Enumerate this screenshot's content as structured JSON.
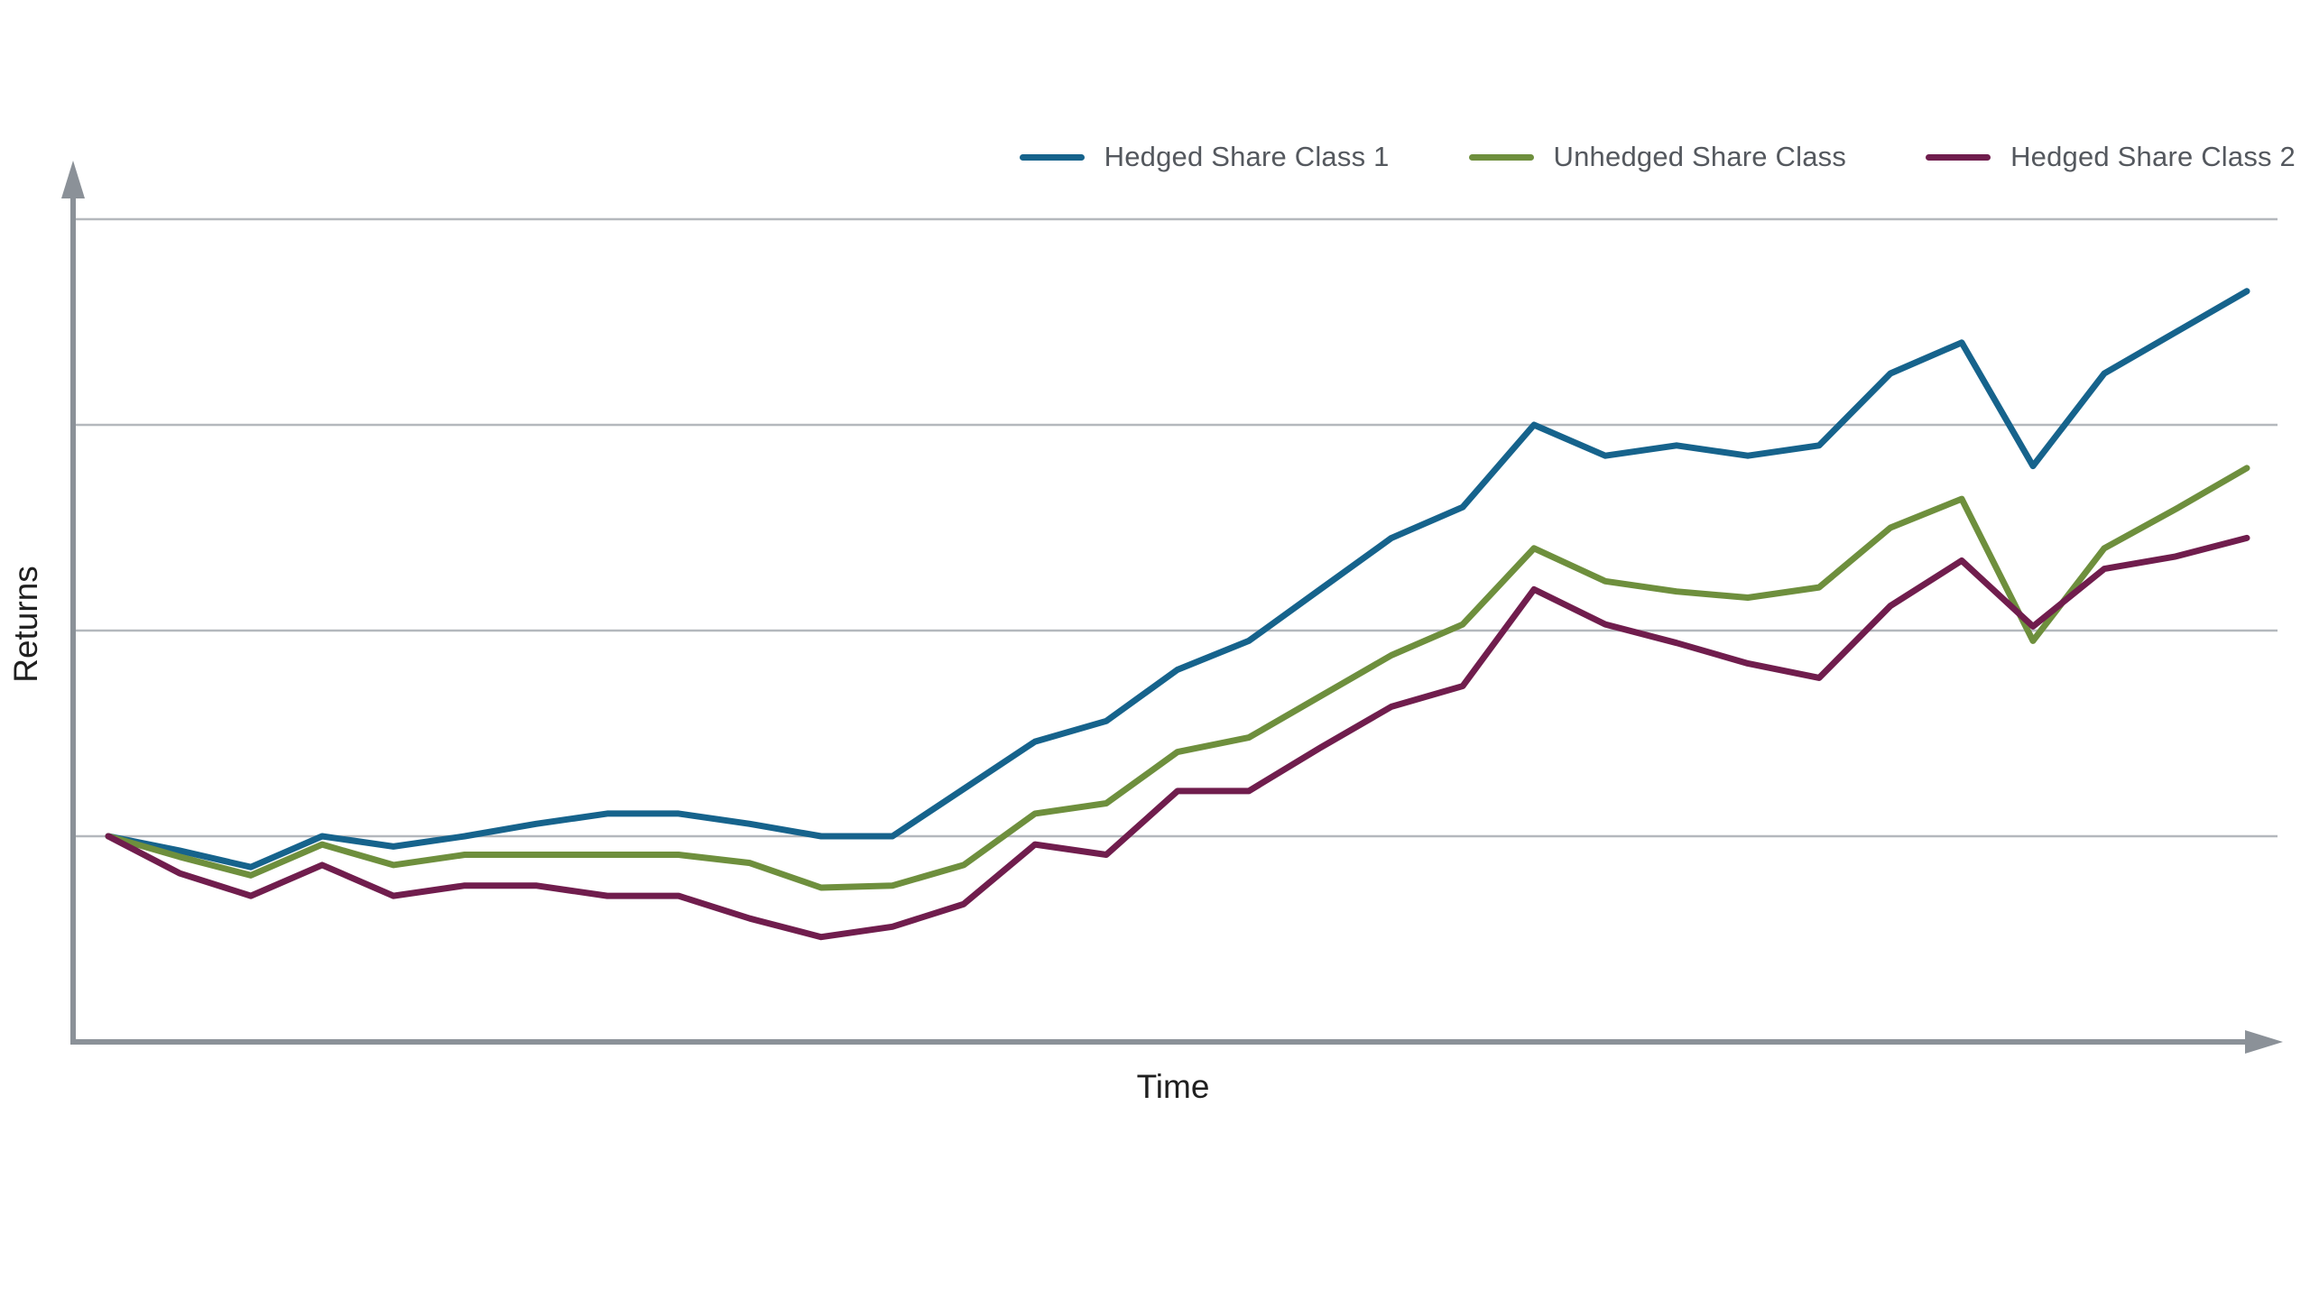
{
  "colors": {
    "background": "#ffffff",
    "axis": "#8b9198",
    "gridline": "#b4b8bd",
    "axis_title_text": "#1f1f1f",
    "legend_text": "#54585e"
  },
  "chart_data": {
    "type": "line",
    "title": "",
    "xlabel": "Time",
    "ylabel": "Returns",
    "x_axis": {
      "tick_labels": [],
      "arrow": true
    },
    "y_axis": {
      "tick_labels": [],
      "arrow": true,
      "gridline_units": [
        0,
        1,
        2,
        3
      ],
      "baseline_unit": 0
    },
    "ylim": [
      -1,
      3.3
    ],
    "grid": "horizontal-only",
    "legend_position": "top-right",
    "x_unit": "time-index",
    "x": [
      0,
      1,
      2,
      3,
      4,
      5,
      6,
      7,
      8,
      9,
      10,
      11,
      12,
      13,
      14,
      15,
      16,
      17,
      18,
      19,
      20,
      21,
      22,
      23,
      24,
      25,
      26,
      27,
      28,
      29,
      30
    ],
    "series": [
      {
        "name": "Hedged Share Class 1",
        "color": "#16638c",
        "values": [
          0,
          -0.07,
          -0.15,
          0.0,
          -0.05,
          0.0,
          0.06,
          0.11,
          0.11,
          0.06,
          0.0,
          0.0,
          0.23,
          0.46,
          0.56,
          0.81,
          0.95,
          1.2,
          1.45,
          1.6,
          2.0,
          1.85,
          1.9,
          1.85,
          1.9,
          2.25,
          2.4,
          1.8,
          2.25,
          2.45,
          2.65
        ]
      },
      {
        "name": "Unhedged Share Class",
        "color": "#6e8f3d",
        "values": [
          0,
          -0.1,
          -0.19,
          -0.04,
          -0.14,
          -0.09,
          -0.09,
          -0.09,
          -0.09,
          -0.13,
          -0.25,
          -0.24,
          -0.14,
          0.11,
          0.16,
          0.41,
          0.48,
          0.68,
          0.88,
          1.03,
          1.4,
          1.24,
          1.19,
          1.16,
          1.21,
          1.5,
          1.64,
          0.95,
          1.4,
          1.59,
          1.79
        ]
      },
      {
        "name": "Hedged Share Class 2",
        "color": "#701d4d",
        "values": [
          0,
          -0.18,
          -0.29,
          -0.14,
          -0.29,
          -0.24,
          -0.24,
          -0.29,
          -0.29,
          -0.4,
          -0.49,
          -0.44,
          -0.33,
          -0.04,
          -0.09,
          0.22,
          0.22,
          0.43,
          0.63,
          0.73,
          1.2,
          1.03,
          0.94,
          0.84,
          0.77,
          1.12,
          1.34,
          1.02,
          1.3,
          1.36,
          1.45
        ]
      }
    ]
  }
}
